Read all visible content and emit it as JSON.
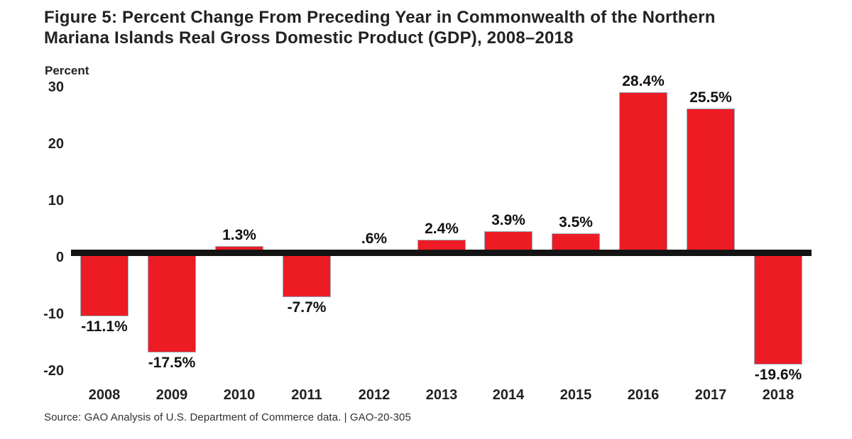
{
  "title": {
    "line1": "Figure 5: Percent Change From Preceding Year in Commonwealth of the Northern",
    "line2": "Mariana Islands Real Gross Domestic Product (GDP), 2008–2018"
  },
  "source": "Source: GAO Analysis of U.S. Department of Commerce data. | GAO-20-305",
  "colors": {
    "bar_fill": "#ED1C24",
    "bar_border": "#9DABBC",
    "axis_line": "#141414",
    "text": "#222222"
  },
  "chart_data": {
    "type": "bar",
    "title": "Figure 5: Percent Change From Preceding Year in Commonwealth of the Northern Mariana Islands Real Gross Domestic Product (GDP), 2008–2018",
    "xlabel": "",
    "ylabel": "Percent",
    "categories": [
      "2008",
      "2009",
      "2010",
      "2011",
      "2012",
      "2013",
      "2014",
      "2015",
      "2016",
      "2017",
      "2018"
    ],
    "values": [
      -11.1,
      -17.5,
      1.3,
      -7.7,
      0.6,
      2.4,
      3.9,
      3.5,
      28.4,
      25.5,
      -19.6
    ],
    "value_labels": [
      "-11.1%",
      "-17.5%",
      "1.3%",
      "-7.7%",
      ".6%",
      "2.4%",
      "3.9%",
      "3.5%",
      "28.4%",
      "25.5%",
      "-19.6%"
    ],
    "yticks": [
      30,
      20,
      10,
      0,
      -10,
      -20
    ],
    "ylim": [
      -20,
      30
    ],
    "grid": false,
    "legend": "none",
    "bar_color": "#ED1C24",
    "zero_baseline": true
  }
}
